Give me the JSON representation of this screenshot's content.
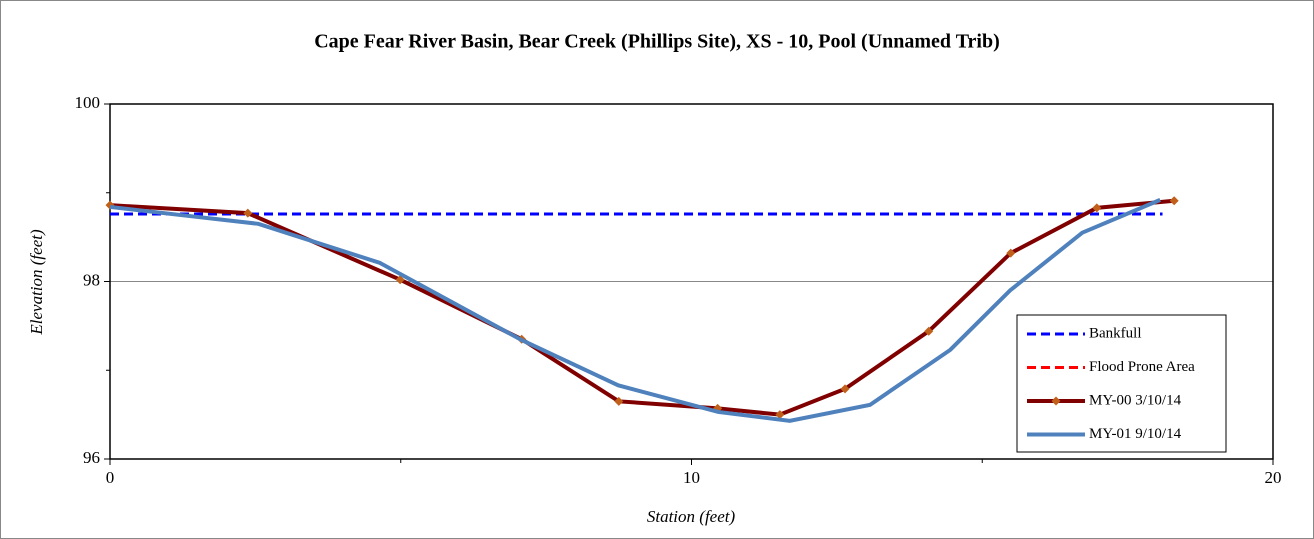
{
  "chart_data": {
    "type": "line",
    "title": "Cape Fear River Basin, Bear Creek (Phillips Site), XS - 10, Pool (Unnamed Trib)",
    "x_label": "Station (feet)",
    "y_label": "Elevation (feet)",
    "xlim": [
      0,
      20
    ],
    "xticks": [
      0,
      10,
      20
    ],
    "ylim": [
      96,
      100
    ],
    "yticks": [
      96,
      98,
      100
    ],
    "grid": true,
    "legend": "lower right",
    "series": [
      {
        "name": "Flood Prone Area",
        "color": "#ff0000",
        "style": "dashed",
        "x": [
          0,
          18.1
        ],
        "values": [
          98.76,
          98.76
        ]
      },
      {
        "name": "Bankfull",
        "color": "#0000ff",
        "style": "dashed",
        "x": [
          0,
          18.1
        ],
        "values": [
          98.76,
          98.76
        ]
      },
      {
        "name": "MY-00 3/10/14",
        "color": "#800000",
        "style": "solid",
        "marker": "diamond",
        "marker_color": "#c0601a",
        "x": [
          0,
          2.37,
          4.99,
          7.08,
          8.75,
          10.45,
          11.52,
          12.64,
          14.08,
          15.49,
          16.97,
          18.3
        ],
        "values": [
          98.86,
          98.77,
          98.02,
          97.35,
          96.65,
          96.57,
          96.5,
          96.79,
          97.44,
          98.32,
          98.83,
          98.91
        ]
      },
      {
        "name": "MY-01 9/10/14",
        "color": "#4f81bd",
        "style": "solid",
        "x": [
          0,
          1.2,
          2.55,
          4.64,
          7.08,
          8.74,
          10.46,
          11.69,
          13.07,
          14.45,
          15.48,
          16.72,
          18.06
        ],
        "values": [
          98.84,
          98.75,
          98.65,
          98.21,
          97.34,
          96.83,
          96.53,
          96.43,
          96.61,
          97.23,
          97.9,
          98.55,
          98.92
        ]
      }
    ]
  }
}
